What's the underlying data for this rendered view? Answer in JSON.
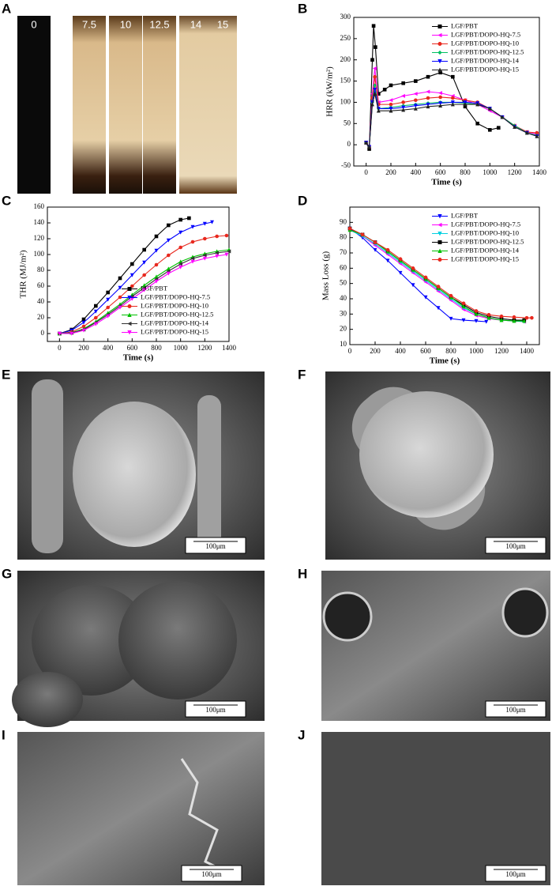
{
  "panel_labels": [
    "A",
    "B",
    "C",
    "D",
    "E",
    "F",
    "G",
    "H",
    "I",
    "J"
  ],
  "samples": [
    "0",
    "7.5",
    "10",
    "12.5",
    "14",
    "15"
  ],
  "scale_bars": [
    "100μm",
    "100μm",
    "100μm",
    "100μm",
    "100μm",
    "100μm"
  ],
  "chart_data": [
    {
      "type": "line",
      "xlabel": "Time (s)",
      "ylabel": "HRR (kW/m²)",
      "xlim": [
        -100,
        1400
      ],
      "ylim": [
        -50,
        300
      ],
      "xticks": [
        0,
        200,
        400,
        600,
        800,
        1000,
        1200,
        1400
      ],
      "yticks": [
        -50,
        0,
        50,
        100,
        150,
        200,
        250,
        300
      ],
      "legend": "upper right",
      "series": [
        {
          "name": "LGF/PBT",
          "color": "#000000",
          "marker": "square",
          "x": [
            0,
            25,
            50,
            60,
            75,
            100,
            150,
            200,
            300,
            400,
            500,
            600,
            700,
            800,
            900,
            1000,
            1070
          ],
          "values": [
            5,
            -10,
            200,
            280,
            230,
            120,
            130,
            140,
            145,
            150,
            160,
            170,
            160,
            90,
            50,
            35,
            40
          ]
        },
        {
          "name": "LGF/PBT/DOPO-HQ-7.5",
          "color": "#ff00ff",
          "marker": "triangle-left",
          "x": [
            0,
            25,
            50,
            70,
            100,
            200,
            300,
            400,
            500,
            600,
            700,
            800,
            900,
            1000,
            1100,
            1200,
            1300,
            1380
          ],
          "values": [
            5,
            -5,
            120,
            180,
            100,
            105,
            115,
            120,
            125,
            122,
            115,
            105,
            95,
            80,
            65,
            45,
            30,
            25
          ]
        },
        {
          "name": "LGF/PBT/DOPO-HQ-10",
          "color": "#e8281e",
          "marker": "circle",
          "x": [
            0,
            25,
            50,
            70,
            100,
            200,
            300,
            400,
            500,
            600,
            700,
            800,
            900,
            1000,
            1100,
            1200,
            1300,
            1380
          ],
          "values": [
            5,
            -5,
            110,
            160,
            95,
            95,
            100,
            105,
            110,
            112,
            110,
            105,
            100,
            85,
            65,
            45,
            30,
            28
          ]
        },
        {
          "name": "LGF/PBT/DOPO-HQ-12.5",
          "color": "#00c060",
          "marker": "diamond",
          "x": [
            0,
            25,
            50,
            70,
            100,
            200,
            300,
            400,
            500,
            600,
            700,
            800,
            900,
            1000,
            1100,
            1200,
            1300,
            1380
          ],
          "values": [
            5,
            -5,
            100,
            140,
            85,
            88,
            92,
            95,
            98,
            100,
            100,
            98,
            95,
            85,
            65,
            45,
            28,
            22
          ]
        },
        {
          "name": "LGF/PBT/DOPO-HQ-14",
          "color": "#0000ff",
          "marker": "triangle-down",
          "x": [
            0,
            25,
            50,
            70,
            100,
            200,
            300,
            400,
            500,
            600,
            700,
            800,
            900,
            1000,
            1100,
            1200,
            1300,
            1380
          ],
          "values": [
            5,
            -5,
            100,
            130,
            85,
            85,
            88,
            92,
            95,
            98,
            100,
            100,
            98,
            85,
            65,
            42,
            28,
            20
          ]
        },
        {
          "name": "LGF/PBT/DOPO-HQ-15",
          "color": "#222222",
          "marker": "triangle",
          "x": [
            0,
            25,
            50,
            70,
            100,
            200,
            300,
            400,
            500,
            600,
            700,
            800,
            900,
            1000,
            1100,
            1200,
            1300,
            1380
          ],
          "values": [
            5,
            -5,
            95,
            120,
            80,
            80,
            82,
            85,
            90,
            92,
            95,
            95,
            95,
            85,
            65,
            42,
            28,
            20
          ]
        }
      ]
    },
    {
      "type": "line",
      "xlabel": "Time (s)",
      "ylabel": "THR (MJ/m²)",
      "xlim": [
        -100,
        1400
      ],
      "ylim": [
        -10,
        160
      ],
      "xticks": [
        0,
        200,
        400,
        600,
        800,
        1000,
        1200,
        1400
      ],
      "yticks": [
        0,
        20,
        40,
        60,
        80,
        100,
        120,
        140,
        160
      ],
      "legend": "lower right",
      "series": [
        {
          "name": "LGF/PBT",
          "color": "#000000",
          "marker": "square",
          "x": [
            0,
            100,
            200,
            300,
            400,
            500,
            600,
            700,
            800,
            900,
            1000,
            1070
          ],
          "values": [
            0,
            5,
            18,
            35,
            52,
            70,
            88,
            106,
            123,
            137,
            144,
            146
          ]
        },
        {
          "name": "LGF/PBT/DOPO-HQ-7.5",
          "color": "#0000ff",
          "marker": "triangle-down",
          "x": [
            0,
            100,
            200,
            300,
            400,
            500,
            600,
            700,
            800,
            900,
            1000,
            1100,
            1200,
            1260
          ],
          "values": [
            0,
            4,
            14,
            28,
            43,
            58,
            74,
            90,
            105,
            118,
            128,
            135,
            139,
            141
          ]
        },
        {
          "name": "LGF/PBT/DOPO-HQ-10",
          "color": "#e8281e",
          "marker": "circle",
          "x": [
            0,
            100,
            200,
            300,
            400,
            500,
            600,
            700,
            800,
            900,
            1000,
            1100,
            1200,
            1300,
            1380
          ],
          "values": [
            0,
            2,
            9,
            20,
            33,
            46,
            60,
            74,
            87,
            99,
            109,
            116,
            120,
            123,
            124
          ]
        },
        {
          "name": "LGF/PBT/DOPO-HQ-12.5",
          "color": "#00c000",
          "marker": "triangle",
          "x": [
            0,
            100,
            200,
            300,
            400,
            500,
            600,
            700,
            800,
            900,
            1000,
            1100,
            1200,
            1300,
            1400
          ],
          "values": [
            0,
            1,
            6,
            15,
            26,
            37,
            49,
            61,
            72,
            82,
            91,
            97,
            101,
            104,
            106
          ]
        },
        {
          "name": "LGF/PBT/DOPO-HQ-14",
          "color": "#333333",
          "marker": "triangle-left",
          "x": [
            0,
            100,
            200,
            300,
            400,
            500,
            600,
            700,
            800,
            900,
            1000,
            1100,
            1200,
            1300,
            1400
          ],
          "values": [
            0,
            1,
            5,
            14,
            24,
            35,
            47,
            58,
            69,
            79,
            88,
            95,
            99,
            102,
            104
          ]
        },
        {
          "name": "LGF/PBT/DOPO-HQ-15",
          "color": "#ff00ff",
          "marker": "triangle-down",
          "x": [
            0,
            100,
            200,
            300,
            400,
            500,
            600,
            700,
            800,
            900,
            1000,
            1100,
            1200,
            1300,
            1380
          ],
          "values": [
            0,
            0,
            4,
            12,
            22,
            33,
            44,
            55,
            66,
            76,
            84,
            91,
            95,
            98,
            100
          ]
        }
      ]
    },
    {
      "type": "line",
      "xlabel": "Time (s)",
      "ylabel": "Mass Loss (g)",
      "xlim": [
        0,
        1500
      ],
      "ylim": [
        10,
        100
      ],
      "xticks": [
        0,
        200,
        400,
        600,
        800,
        1000,
        1200,
        1400
      ],
      "yticks": [
        10,
        20,
        30,
        40,
        50,
        60,
        70,
        80,
        90
      ],
      "legend": "upper right",
      "series": [
        {
          "name": "LGF/PBT",
          "color": "#0000ff",
          "marker": "triangle-down",
          "x": [
            0,
            100,
            200,
            300,
            400,
            500,
            600,
            700,
            800,
            900,
            1000,
            1080
          ],
          "values": [
            86,
            80,
            72,
            65,
            57,
            49,
            41,
            34,
            27,
            26,
            25.5,
            25
          ]
        },
        {
          "name": "LGF/PBT/DOPO-HQ-7.5",
          "color": "#ff00ff",
          "marker": "triangle-left",
          "x": [
            0,
            100,
            200,
            300,
            400,
            500,
            600,
            700,
            800,
            900,
            1000,
            1100,
            1200,
            1300,
            1380
          ],
          "values": [
            85,
            81,
            75,
            69,
            63,
            57,
            51,
            45,
            39,
            33,
            29,
            27,
            26,
            25.5,
            25
          ]
        },
        {
          "name": "LGF/PBT/DOPO-HQ-10",
          "color": "#00d0e0",
          "marker": "triangle-down",
          "x": [
            0,
            100,
            200,
            300,
            400,
            500,
            600,
            700,
            800,
            900,
            1000,
            1100,
            1200,
            1300,
            1380
          ],
          "values": [
            85,
            81,
            76,
            70,
            64,
            58,
            52,
            46,
            40,
            34,
            30,
            27.5,
            26,
            25.5,
            25
          ]
        },
        {
          "name": "LGF/PBT/DOPO-HQ-12.5",
          "color": "#000000",
          "marker": "square",
          "x": [
            0,
            100,
            200,
            300,
            400,
            500,
            600,
            700,
            800,
            900,
            1000,
            1100,
            1200,
            1300,
            1380
          ],
          "values": [
            86,
            82,
            77,
            71,
            65,
            59,
            53,
            47,
            41,
            36,
            31,
            28.5,
            27,
            26,
            26
          ]
        },
        {
          "name": "LGF/PBT/DOPO-HQ-14",
          "color": "#00c000",
          "marker": "triangle",
          "x": [
            0,
            100,
            200,
            300,
            400,
            500,
            600,
            700,
            800,
            900,
            1000,
            1100,
            1200,
            1300,
            1380
          ],
          "values": [
            85,
            82,
            77,
            71,
            65,
            59,
            53,
            47,
            41,
            35,
            30,
            27.5,
            26,
            25.5,
            25.5
          ]
        },
        {
          "name": "LGF/PBT/DOPO-HQ-15",
          "color": "#e8281e",
          "marker": "circle",
          "x": [
            0,
            100,
            200,
            300,
            400,
            500,
            600,
            700,
            800,
            900,
            1000,
            1100,
            1200,
            1300,
            1400,
            1440
          ],
          "values": [
            86,
            82,
            77,
            72,
            66,
            60,
            54,
            48,
            42,
            37,
            32,
            29.5,
            28.5,
            28,
            27.5,
            27.5
          ]
        }
      ]
    }
  ]
}
